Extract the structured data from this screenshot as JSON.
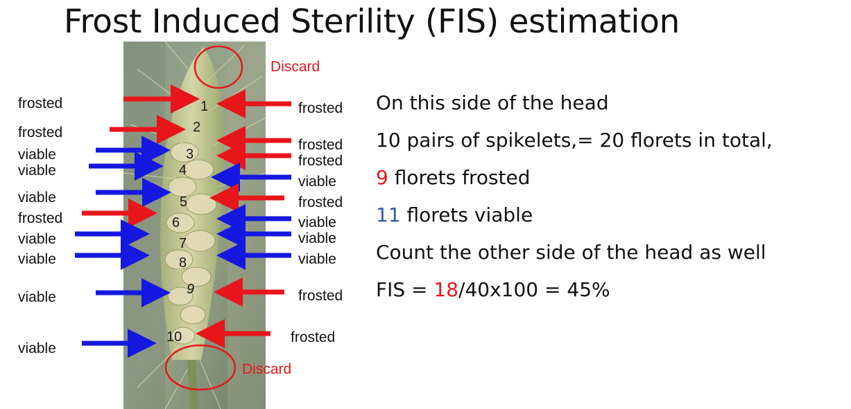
{
  "title": "Frost Induced Sterility (FIS) estimation",
  "discard_top": "Discard",
  "discard_bottom": "Discard",
  "left_labels": [
    "frosted",
    "frosted",
    "viable",
    "viable",
    "viable",
    "frosted",
    "viable",
    "viable",
    "viable",
    "viable"
  ],
  "right_labels": [
    "frosted",
    "frosted",
    "frosted",
    "viable",
    "frosted",
    "viable",
    "viable",
    "viable",
    "frosted",
    "frosted"
  ],
  "spikelet_numbers": [
    "1",
    "2",
    "3",
    "4",
    "5",
    "6",
    "7",
    "8",
    "9",
    "10"
  ],
  "colors": {
    "frosted_arrow": "#e8151b",
    "viable_arrow": "#1518e0",
    "red_text": "#e8151b",
    "blue_text": "#2c5aa0"
  },
  "text": {
    "line1": "On this side of the head",
    "line2": "10 pairs of spikelets,= 20 florets in total,",
    "line3_num": "9",
    "line3_rest": " florets frosted",
    "line4_num": "11",
    "line4_rest": " florets viable",
    "line5": "Count the other side of the head as well",
    "line6_pre": "FIS = ",
    "line6_num": "18",
    "line6_rest": "/40x100 = 45%"
  }
}
